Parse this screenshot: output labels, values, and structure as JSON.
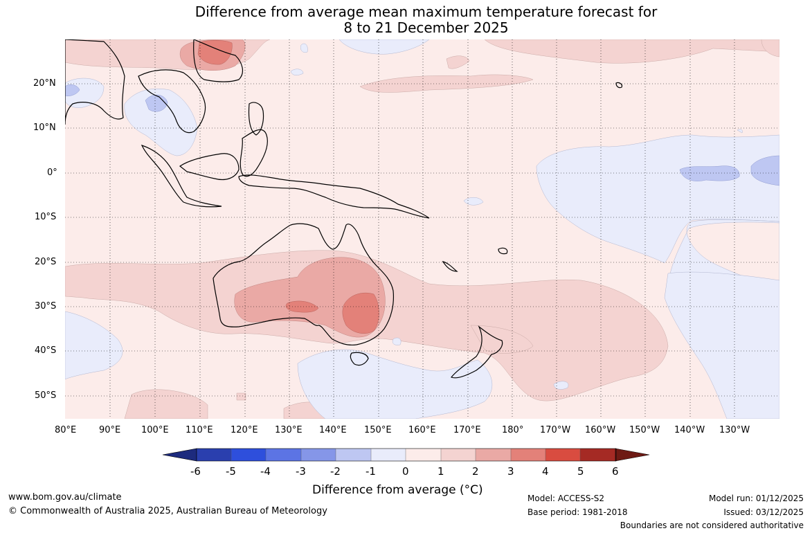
{
  "title": {
    "line1": "Difference from average mean maximum temperature forecast for",
    "line2": "8 to 21 December 2025"
  },
  "map": {
    "lat_labels": [
      "20°N",
      "10°N",
      "0°",
      "10°S",
      "20°S",
      "30°S",
      "40°S",
      "50°S"
    ],
    "lon_labels": [
      "80°E",
      "90°E",
      "100°E",
      "110°E",
      "120°E",
      "130°E",
      "140°E",
      "150°E",
      "160°E",
      "170°E",
      "180°",
      "170°W",
      "160°W",
      "150°W",
      "140°W",
      "130°W"
    ]
  },
  "legend": {
    "tick_labels": [
      "-6",
      "-5",
      "-4",
      "-3",
      "-2",
      "-1",
      "0",
      "1",
      "2",
      "3",
      "4",
      "5",
      "6"
    ],
    "colors": [
      "#1d2b7e",
      "#2a3fae",
      "#2e4fdc",
      "#5c74e4",
      "#8596e8",
      "#bec7f2",
      "#e9ecfb",
      "#fcecea",
      "#f4d3d1",
      "#eaa9a5",
      "#e38179",
      "#d94c40",
      "#a52a24",
      "#6e1a14"
    ],
    "label": "Difference from average (°C)"
  },
  "footer": {
    "url": "www.bom.gov.au/climate",
    "copyright": "© Commonwealth of Australia 2025, Australian Bureau of Meteorology",
    "model": "Model: ACCESS-S2",
    "base_period": "Base period: 1981-2018",
    "model_run": "Model run: 01/12/2025",
    "issued": "Issued: 03/12/2025",
    "disclaimer": "Boundaries are not considered authoritative"
  }
}
